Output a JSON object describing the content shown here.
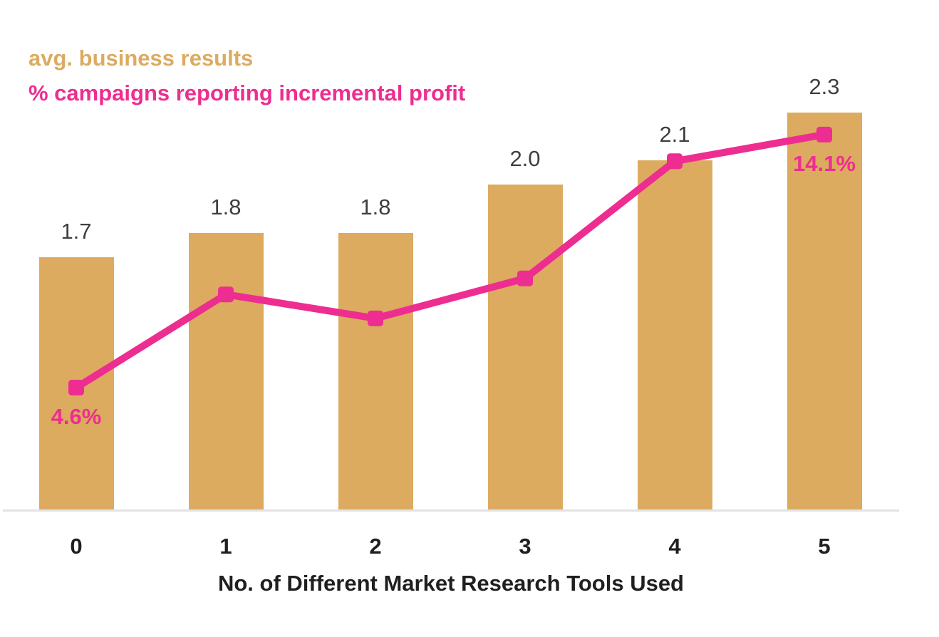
{
  "chart_data": {
    "type": "combo",
    "categories": [
      "0",
      "1",
      "2",
      "3",
      "4",
      "5"
    ],
    "series": [
      {
        "name": "avg. business results",
        "type": "bar",
        "values": [
          1.7,
          1.8,
          1.8,
          2.0,
          2.1,
          2.3
        ],
        "value_labels": [
          "1.7",
          "1.8",
          "1.8",
          "2.0",
          "2.1",
          "2.3"
        ],
        "color": "#DCAB60",
        "axis_range": [
          0.65,
          2.55
        ]
      },
      {
        "name": "% campaigns reporting incremental profit",
        "type": "line",
        "values": [
          4.6,
          8.1,
          7.2,
          8.7,
          13.1,
          14.1
        ],
        "point_labels": [
          "4.6%",
          "",
          "",
          "",
          "",
          "14.1%"
        ],
        "marker": "square",
        "color": "#EE2D91",
        "axis_range": [
          0,
          17.2
        ]
      }
    ],
    "xlabel": "No. of Different Market Research Tools Used",
    "grid": false,
    "legend_position": "top-left-stacked-title"
  },
  "colors": {
    "background": "#FFFFFF",
    "bar": "#DCAB60",
    "line": "#EE2D91",
    "bar_value_label": "#3F3F3F",
    "axis_tick_label": "#1F1F1F",
    "axis_title": "#1F1F1F",
    "baseline": "#E3E3E3"
  }
}
